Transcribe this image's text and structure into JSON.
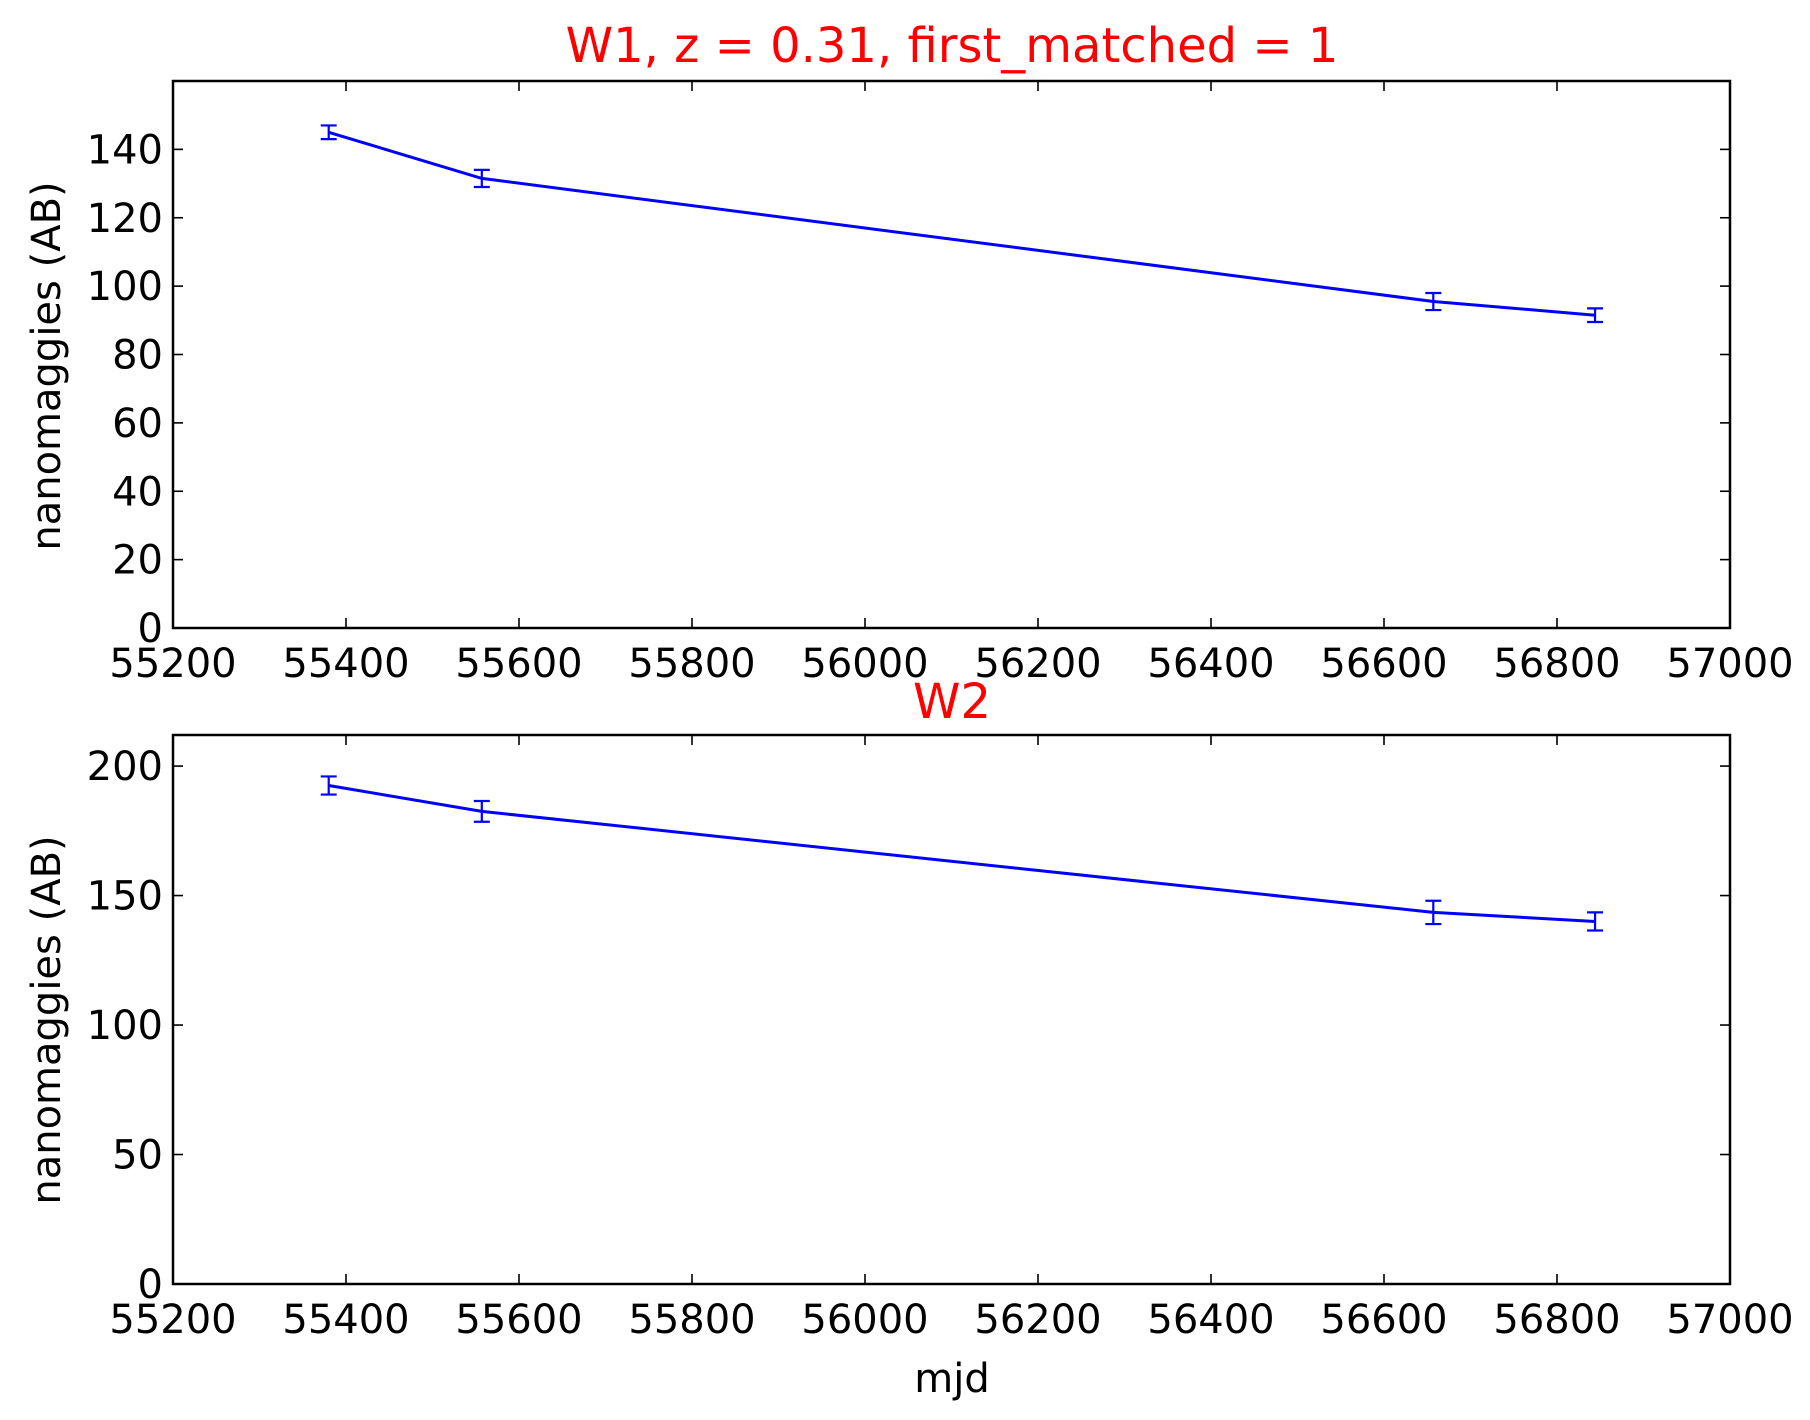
{
  "colors": {
    "title": "#ff0000",
    "series": "#0000ff",
    "axes": "#000000",
    "background": "#ffffff"
  },
  "chart_data": [
    {
      "type": "line",
      "title": "W1, z = 0.31, first_matched = 1",
      "xlabel": "",
      "ylabel": "nanomaggies (AB)",
      "xlim": [
        55200,
        57000
      ],
      "ylim": [
        0,
        160
      ],
      "xticks": [
        55200,
        55400,
        55600,
        55800,
        56000,
        56200,
        56400,
        56600,
        56800,
        57000
      ],
      "yticks": [
        0,
        20,
        40,
        60,
        80,
        100,
        120,
        140
      ],
      "grid": false,
      "error_bars": true,
      "x": [
        55380,
        55557,
        56657,
        56844
      ],
      "y": [
        145,
        131.5,
        95.5,
        91.5
      ],
      "yerr": [
        2,
        2.5,
        2.5,
        2
      ]
    },
    {
      "type": "line",
      "title": "W2",
      "xlabel": "mjd",
      "ylabel": "nanomaggies (AB)",
      "xlim": [
        55200,
        57000
      ],
      "ylim": [
        0,
        212
      ],
      "xticks": [
        55200,
        55400,
        55600,
        55800,
        56000,
        56200,
        56400,
        56600,
        56800,
        57000
      ],
      "yticks": [
        0,
        50,
        100,
        150,
        200
      ],
      "grid": false,
      "error_bars": true,
      "x": [
        55380,
        55557,
        56657,
        56844
      ],
      "y": [
        192.5,
        182.5,
        143.5,
        140
      ],
      "yerr": [
        3.5,
        4,
        4.5,
        3.5
      ]
    }
  ]
}
